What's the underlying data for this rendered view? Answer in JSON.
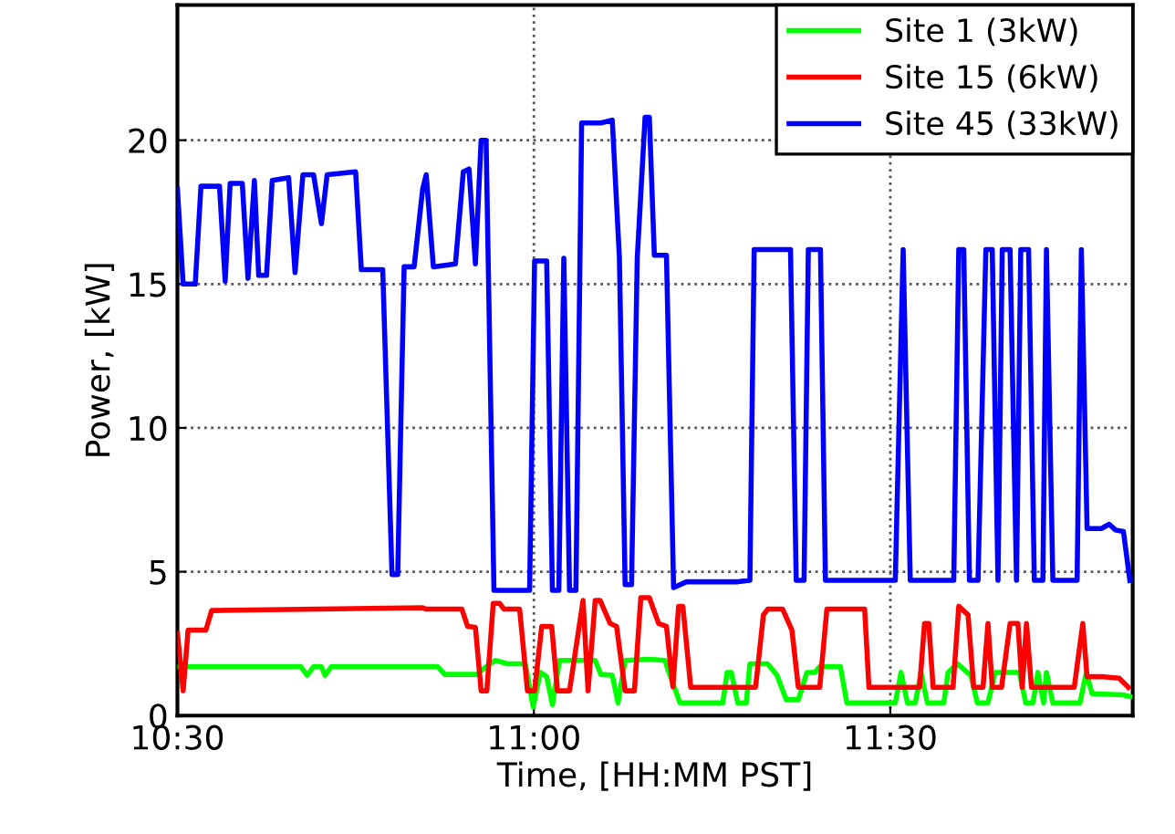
{
  "chart_data": {
    "type": "line",
    "xlabel": "Time, [HH:MM PST]",
    "ylabel": "Power, [kW]",
    "xlim": [
      10.5,
      11.84
    ],
    "xticks": [
      {
        "value": 10.5,
        "label": "10:30"
      },
      {
        "value": 11,
        "label": "11:00"
      },
      {
        "value": 11.5,
        "label": "11:30"
      }
    ],
    "ylim": [
      0,
      24.7
    ],
    "yticks": [
      0,
      5,
      10,
      15,
      20
    ],
    "grid": true,
    "legend": "top right",
    "line_style": "solid",
    "marker": "none",
    "series": [
      {
        "name": "Site 1 (3kW)",
        "color": "#00ff00",
        "x": [
          10.5,
          10.673,
          10.682,
          10.691,
          10.702,
          10.707,
          10.716,
          10.865,
          10.875,
          10.92,
          10.933,
          10.946,
          10.963,
          10.988,
          10.999,
          11.009,
          11.018,
          11.026,
          11.036,
          11.086,
          11.094,
          11.11,
          11.118,
          11.128,
          11.162,
          11.184,
          11.188,
          11.205,
          11.265,
          11.271,
          11.277,
          11.286,
          11.298,
          11.303,
          11.328,
          11.341,
          11.354,
          11.371,
          11.383,
          11.394,
          11.401,
          11.43,
          11.439,
          11.507,
          11.515,
          11.524,
          11.535,
          11.543,
          11.552,
          11.575,
          11.581,
          11.594,
          11.613,
          11.622,
          11.637,
          11.647,
          11.681,
          11.69,
          11.7,
          11.707,
          11.715,
          11.719,
          11.728,
          11.766,
          11.775,
          11.783,
          11.826,
          11.836
        ],
        "values": [
          1.7,
          1.7,
          1.4,
          1.7,
          1.7,
          1.4,
          1.7,
          1.7,
          1.43,
          1.43,
          1.7,
          1.92,
          1.8,
          1.8,
          0.3,
          1.5,
          1.35,
          0.38,
          1.92,
          1.92,
          1.43,
          1.4,
          0.44,
          1.92,
          1.96,
          1.92,
          1.6,
          0.44,
          0.44,
          1.5,
          1.5,
          0.44,
          0.44,
          1.8,
          1.8,
          1.4,
          0.55,
          0.55,
          1.5,
          1.5,
          1.7,
          1.7,
          0.44,
          0.44,
          1.5,
          0.44,
          0.44,
          1.5,
          0.44,
          0.44,
          1.5,
          1.8,
          1.4,
          0.44,
          0.44,
          1.5,
          1.5,
          0.44,
          0.44,
          1.5,
          0.44,
          1.5,
          0.44,
          0.44,
          1.5,
          0.76,
          0.72,
          0.66
        ]
      },
      {
        "name": "Site 15 (6kW)",
        "color": "#ff0000",
        "x": [
          10.5,
          10.508,
          10.515,
          10.54,
          10.548,
          10.844,
          10.849,
          10.899,
          10.907,
          10.918,
          10.926,
          10.934,
          10.943,
          10.952,
          10.958,
          10.98,
          10.991,
          11.001,
          11.011,
          11.025,
          11.033,
          11.05,
          11.069,
          11.076,
          11.086,
          11.093,
          11.107,
          11.116,
          11.128,
          11.141,
          11.15,
          11.162,
          11.175,
          11.186,
          11.195,
          11.203,
          11.209,
          11.22,
          11.311,
          11.322,
          11.328,
          11.349,
          11.362,
          11.371,
          11.401,
          11.411,
          11.464,
          11.47,
          11.541,
          11.548,
          11.554,
          11.56,
          11.588,
          11.596,
          11.609,
          11.617,
          11.63,
          11.637,
          11.643,
          11.656,
          11.668,
          11.679,
          11.685,
          11.691,
          11.698,
          11.758,
          11.77,
          11.776,
          11.8,
          11.821,
          11.834
        ],
        "values": [
          2.87,
          0.86,
          2.97,
          2.97,
          3.65,
          3.75,
          3.7,
          3.7,
          3.1,
          3.07,
          0.86,
          0.86,
          3.9,
          3.9,
          3.7,
          3.7,
          0.86,
          0.86,
          3.1,
          3.1,
          0.86,
          0.86,
          4.0,
          0.86,
          4.0,
          4.0,
          3.2,
          3.1,
          0.86,
          0.86,
          4.1,
          4.1,
          3.2,
          3.1,
          1.0,
          3.8,
          3.8,
          0.98,
          0.98,
          3.5,
          3.7,
          3.7,
          2.97,
          0.98,
          0.98,
          3.7,
          3.7,
          0.98,
          0.98,
          3.2,
          3.2,
          0.98,
          0.98,
          3.8,
          3.5,
          0.98,
          0.98,
          3.2,
          0.98,
          0.98,
          3.2,
          3.2,
          0.98,
          3.2,
          0.98,
          0.98,
          3.2,
          1.35,
          1.35,
          1.3,
          0.98
        ]
      },
      {
        "name": "Site 45 (33kW)",
        "color": "#0000ff",
        "x": [
          10.5,
          10.508,
          10.525,
          10.533,
          10.559,
          10.567,
          10.574,
          10.591,
          10.599,
          10.608,
          10.614,
          10.625,
          10.633,
          10.656,
          10.665,
          10.676,
          10.691,
          10.702,
          10.71,
          10.75,
          10.758,
          10.788,
          10.801,
          10.809,
          10.818,
          10.832,
          10.844,
          10.849,
          10.859,
          10.89,
          10.901,
          10.909,
          10.918,
          10.926,
          10.933,
          10.944,
          10.994,
          11.001,
          11.018,
          11.026,
          11.035,
          11.042,
          11.05,
          11.059,
          11.067,
          11.094,
          11.11,
          11.12,
          11.128,
          11.137,
          11.145,
          11.156,
          11.162,
          11.169,
          11.186,
          11.196,
          11.214,
          11.286,
          11.303,
          11.309,
          11.36,
          11.368,
          11.379,
          11.385,
          11.402,
          11.409,
          11.507,
          11.518,
          11.528,
          11.589,
          11.596,
          11.603,
          11.611,
          11.623,
          11.634,
          11.643,
          11.651,
          11.657,
          11.668,
          11.677,
          11.683,
          11.694,
          11.702,
          11.714,
          11.719,
          11.728,
          11.762,
          11.768,
          11.776,
          11.796,
          11.807,
          11.816,
          11.827,
          11.836
        ],
        "values": [
          18.3,
          15.0,
          15.0,
          18.4,
          18.4,
          15.1,
          18.5,
          18.5,
          15.2,
          18.6,
          15.3,
          15.3,
          18.6,
          18.7,
          15.4,
          18.8,
          18.8,
          17.1,
          18.8,
          18.9,
          15.5,
          15.5,
          4.9,
          4.9,
          15.6,
          15.6,
          18.3,
          18.8,
          15.6,
          15.7,
          18.9,
          19.0,
          15.7,
          20.0,
          20.0,
          4.35,
          4.35,
          15.8,
          15.8,
          4.35,
          4.35,
          15.9,
          4.35,
          4.35,
          20.6,
          20.6,
          20.7,
          15.9,
          4.55,
          4.55,
          15.9,
          20.8,
          20.8,
          16.0,
          16.0,
          4.45,
          4.65,
          4.65,
          4.7,
          16.2,
          16.2,
          4.7,
          4.7,
          16.2,
          16.2,
          4.7,
          4.7,
          16.2,
          4.7,
          4.7,
          16.2,
          16.2,
          4.7,
          4.7,
          16.2,
          16.2,
          4.7,
          16.2,
          16.2,
          4.7,
          16.2,
          16.2,
          4.7,
          4.7,
          16.2,
          4.7,
          4.7,
          16.2,
          6.5,
          6.5,
          6.65,
          6.45,
          6.4,
          4.7
        ]
      }
    ]
  }
}
